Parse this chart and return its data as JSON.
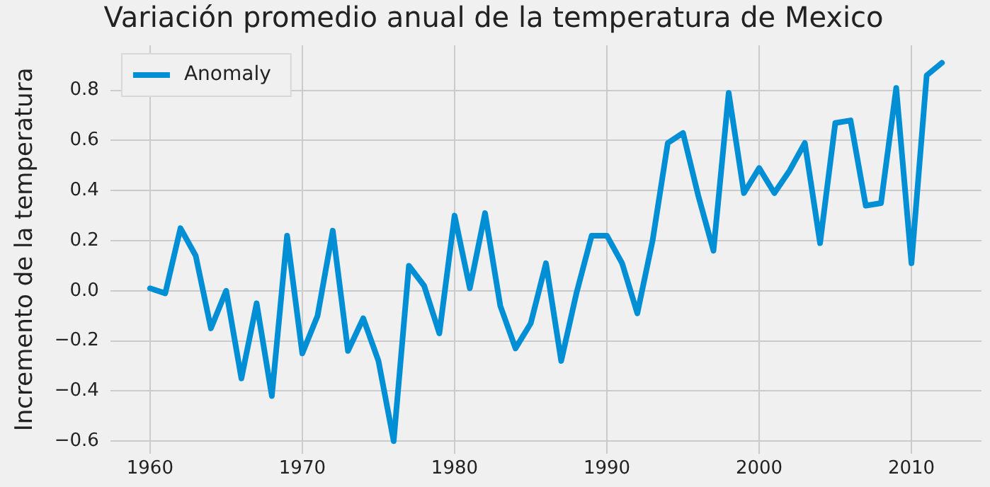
{
  "chart_data": {
    "type": "line",
    "title": "Variación promedio anual de la temperatura de Mexico",
    "ylabel": "Incremento de la temperatura",
    "x": [
      1960,
      1961,
      1962,
      1963,
      1964,
      1965,
      1966,
      1967,
      1968,
      1969,
      1970,
      1971,
      1972,
      1973,
      1974,
      1975,
      1976,
      1977,
      1978,
      1979,
      1980,
      1981,
      1982,
      1983,
      1984,
      1985,
      1986,
      1987,
      1988,
      1989,
      1990,
      1991,
      1992,
      1993,
      1994,
      1995,
      1996,
      1997,
      1998,
      1999,
      2000,
      2001,
      2002,
      2003,
      2004,
      2005,
      2006,
      2007,
      2008,
      2009,
      2010,
      2011,
      2012
    ],
    "series": [
      {
        "name": "Anomaly",
        "color": "#008fd5",
        "values": [
          0.01,
          -0.01,
          0.25,
          0.14,
          -0.15,
          0.0,
          -0.35,
          -0.05,
          -0.42,
          0.22,
          -0.25,
          -0.1,
          0.24,
          -0.24,
          -0.11,
          -0.28,
          -0.6,
          0.1,
          0.02,
          -0.17,
          0.3,
          0.01,
          0.31,
          -0.06,
          -0.23,
          -0.13,
          0.11,
          -0.28,
          -0.01,
          0.22,
          0.22,
          0.11,
          -0.09,
          0.2,
          0.59,
          0.63,
          0.38,
          0.16,
          0.79,
          0.39,
          0.49,
          0.39,
          0.48,
          0.59,
          0.19,
          0.67,
          0.68,
          0.34,
          0.35,
          0.81,
          0.11,
          0.86,
          0.91
        ]
      }
    ],
    "xlim": [
      1957.4,
      2014.6
    ],
    "ylim": [
      -0.65,
      0.98
    ],
    "xticks": [
      1960,
      1970,
      1980,
      1990,
      2000,
      2010
    ],
    "yticks": [
      {
        "value": -0.6,
        "label": "−0.6"
      },
      {
        "value": -0.4,
        "label": "−0.4"
      },
      {
        "value": -0.2,
        "label": "−0.2"
      },
      {
        "value": 0,
        "label": "0.0"
      },
      {
        "value": 0.2,
        "label": "0.2"
      },
      {
        "value": 0.4,
        "label": "0.4"
      },
      {
        "value": 0.6,
        "label": "0.6"
      },
      {
        "value": 0.8,
        "label": "0.8"
      }
    ],
    "grid": true,
    "legend": "top left",
    "marker": "none",
    "line_style": "solid"
  }
}
